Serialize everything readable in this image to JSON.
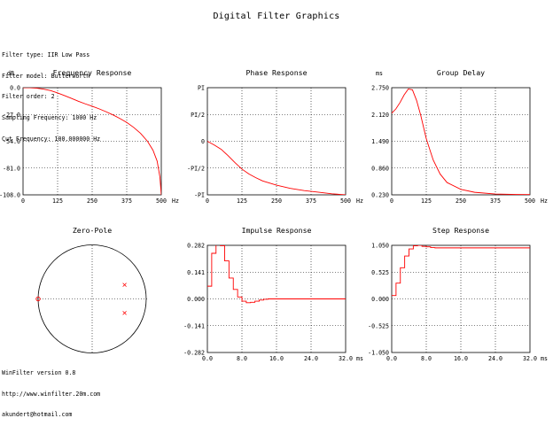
{
  "header": {
    "title": "Digital Filter Graphics"
  },
  "filter_info": [
    "Filter type: IIR Low Pass",
    "Filter model: Butterworth",
    "Filter order: 2",
    "Sampling Frequency: 1000 Hz",
    "Cut Frequency: 100.000000 Hz"
  ],
  "footer": [
    "WinFilter version 0.8",
    "http://www.winfilter.20m.com",
    "akundert@hotmail.com"
  ],
  "colors": {
    "curve": "#ff0000",
    "axis": "#000000",
    "grid": "#000000"
  },
  "chart_data": [
    {
      "id": "frequency-response",
      "type": "line",
      "title": "Frequency Response",
      "unit_label": "dB",
      "x_unit": "Hz",
      "xlim": [
        0,
        500
      ],
      "ylim": [
        -108,
        0
      ],
      "x_ticks": [
        "0",
        "125",
        "250",
        "375",
        "500"
      ],
      "y_ticks": [
        "0.0",
        "-27.0",
        "-54.0",
        "-81.0",
        "-108.0"
      ],
      "grid": true,
      "series": [
        {
          "x": [
            0,
            25,
            50,
            75,
            100,
            125,
            150,
            175,
            200,
            225,
            250,
            275,
            300,
            325,
            350,
            375,
            400,
            425,
            450,
            470,
            485,
            495,
            500
          ],
          "y": [
            0,
            -0.1,
            -0.5,
            -1.5,
            -3.0,
            -5.3,
            -8.0,
            -10.8,
            -13.7,
            -16.3,
            -18.7,
            -21.3,
            -24.2,
            -27.4,
            -31.0,
            -35.0,
            -40.0,
            -46.0,
            -54.0,
            -63.0,
            -74.0,
            -90.0,
            -108.0
          ]
        }
      ]
    },
    {
      "id": "phase-response",
      "type": "line",
      "title": "Phase Response",
      "unit_label": "",
      "x_unit": "Hz",
      "xlim": [
        0,
        500
      ],
      "ylim": [
        -1,
        1
      ],
      "x_ticks": [
        "0",
        "125",
        "250",
        "375",
        "500"
      ],
      "y_ticks": [
        "PI",
        "PI/2",
        "0",
        "-PI/2",
        "-PI"
      ],
      "grid": true,
      "series": [
        {
          "x": [
            0,
            25,
            50,
            75,
            100,
            125,
            150,
            175,
            200,
            250,
            300,
            350,
            400,
            450,
            500
          ],
          "y": [
            0,
            -0.07,
            -0.15,
            -0.27,
            -0.4,
            -0.52,
            -0.61,
            -0.68,
            -0.74,
            -0.82,
            -0.88,
            -0.92,
            -0.95,
            -0.98,
            -1.0
          ]
        }
      ]
    },
    {
      "id": "group-delay",
      "type": "line",
      "title": "Group Delay",
      "unit_label": "ms",
      "x_unit": "Hz",
      "xlim": [
        0,
        500
      ],
      "ylim": [
        0.23,
        2.75
      ],
      "x_ticks": [
        "0",
        "125",
        "250",
        "375",
        "500"
      ],
      "y_ticks": [
        "2.750",
        "2.120",
        "1.490",
        "0.860",
        "0.230"
      ],
      "grid": true,
      "series": [
        {
          "x": [
            0,
            15,
            30,
            45,
            60,
            75,
            90,
            105,
            125,
            150,
            175,
            200,
            250,
            300,
            375,
            450,
            500
          ],
          "y": [
            2.15,
            2.25,
            2.4,
            2.58,
            2.72,
            2.7,
            2.45,
            2.1,
            1.55,
            1.05,
            0.72,
            0.52,
            0.36,
            0.29,
            0.25,
            0.24,
            0.235
          ]
        }
      ]
    },
    {
      "id": "zero-pole",
      "type": "scatter",
      "title": "Zero-Pole",
      "unit_label": "",
      "xlim": [
        -1,
        1
      ],
      "ylim": [
        -1,
        1
      ],
      "grid": true,
      "zeros": [
        {
          "re": -1.0,
          "im": 0.0
        }
      ],
      "poles": [
        {
          "re": 0.6,
          "im": 0.26
        },
        {
          "re": 0.6,
          "im": -0.26
        }
      ]
    },
    {
      "id": "impulse-response",
      "type": "line",
      "title": "Impulse Response",
      "unit_label": "",
      "x_unit": "ms",
      "xlim": [
        0,
        32
      ],
      "ylim": [
        -0.282,
        0.282
      ],
      "x_ticks": [
        "0.0",
        "8.0",
        "16.0",
        "24.0",
        "32.0"
      ],
      "y_ticks": [
        "0.282",
        "0.141",
        "0.000",
        "-0.141",
        "-0.282"
      ],
      "grid": true,
      "series": [
        {
          "x": [
            0,
            1,
            2,
            3,
            4,
            5,
            6,
            7,
            8,
            9,
            10,
            11,
            12,
            13,
            14,
            15,
            16,
            32
          ],
          "y": [
            0.067,
            0.24,
            0.3,
            0.28,
            0.2,
            0.11,
            0.05,
            0.01,
            -0.012,
            -0.02,
            -0.018,
            -0.012,
            -0.006,
            -0.002,
            0.0,
            0.0,
            0.0,
            0.0
          ]
        }
      ]
    },
    {
      "id": "step-response",
      "type": "line",
      "title": "Step Response",
      "unit_label": "",
      "x_unit": "ms",
      "xlim": [
        0,
        32
      ],
      "ylim": [
        -1.05,
        1.05
      ],
      "x_ticks": [
        "0.0",
        "8.0",
        "16.0",
        "24.0",
        "32.0"
      ],
      "y_ticks": [
        "1.050",
        "0.525",
        "0.000",
        "-0.525",
        "-1.050"
      ],
      "grid": true,
      "series": [
        {
          "x": [
            0,
            1,
            2,
            3,
            4,
            5,
            6,
            7,
            8,
            9,
            10,
            11,
            12,
            14,
            16,
            32
          ],
          "y": [
            0.067,
            0.31,
            0.61,
            0.84,
            0.98,
            1.04,
            1.05,
            1.03,
            1.02,
            1.005,
            1.0,
            1.0,
            1.0,
            1.0,
            1.0,
            1.0
          ]
        }
      ]
    }
  ]
}
